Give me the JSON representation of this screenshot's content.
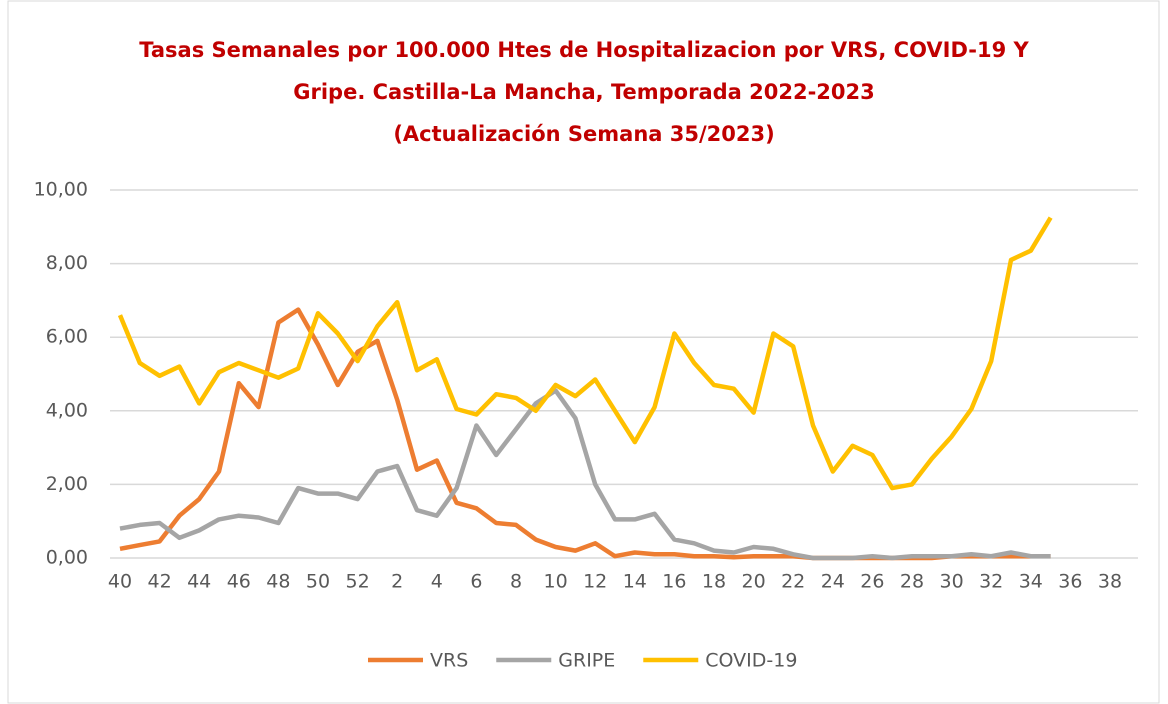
{
  "chart_data": {
    "type": "line",
    "title": [
      "Tasas Semanales por 100.000 Htes de Hospitalizacion por VRS, COVID-19 Y",
      "Gripe. Castilla-La Mancha, Temporada 2022-2023",
      "(Actualización Semana 35/2023)"
    ],
    "title_color": "#c00000",
    "categories": [
      "40",
      null,
      "42",
      null,
      "44",
      null,
      "46",
      null,
      "48",
      null,
      "50",
      null,
      "52",
      null,
      "2",
      null,
      "4",
      null,
      "6",
      null,
      "8",
      null,
      "10",
      null,
      "12",
      null,
      "14",
      null,
      "16",
      null,
      "18",
      null,
      "20",
      null,
      "22",
      null,
      "24",
      null,
      "26",
      null,
      "28",
      null,
      "30",
      null,
      "32",
      null,
      "34",
      null,
      "36",
      null,
      "38"
    ],
    "series": [
      {
        "name": "VRS",
        "color": "#ed7d31",
        "values": [
          0.25,
          0.35,
          0.45,
          1.15,
          1.6,
          2.35,
          4.75,
          4.1,
          6.4,
          6.75,
          5.8,
          4.7,
          5.6,
          5.9,
          4.3,
          2.4,
          2.65,
          1.5,
          1.35,
          0.95,
          0.9,
          0.5,
          0.3,
          0.2,
          0.4,
          0.05,
          0.15,
          0.1,
          0.1,
          0.05,
          0.05,
          0.02,
          0.05,
          0.05,
          0.05,
          0,
          0,
          0,
          0,
          0,
          0,
          0,
          0.05,
          0.05,
          0.05,
          0.05,
          0.05,
          0.05,
          null,
          null,
          null
        ]
      },
      {
        "name": "GRIPE",
        "color": "#a5a5a5",
        "values": [
          0.8,
          0.9,
          0.95,
          0.55,
          0.75,
          1.05,
          1.15,
          1.1,
          0.95,
          1.9,
          1.75,
          1.75,
          1.6,
          2.35,
          2.5,
          1.3,
          1.15,
          1.9,
          3.6,
          2.8,
          3.5,
          4.2,
          4.55,
          3.8,
          2.0,
          1.05,
          1.05,
          1.2,
          0.5,
          0.4,
          0.2,
          0.15,
          0.3,
          0.25,
          0.1,
          0,
          0,
          0,
          0.05,
          0,
          0.05,
          0.05,
          0.05,
          0.1,
          0.05,
          0.15,
          0.05,
          0.05,
          null,
          null,
          null
        ]
      },
      {
        "name": "COVID-19",
        "color": "#ffc000",
        "values": [
          6.6,
          5.3,
          4.95,
          5.2,
          4.2,
          5.05,
          5.3,
          5.1,
          4.9,
          5.15,
          6.65,
          6.1,
          5.35,
          6.3,
          6.95,
          5.1,
          5.4,
          4.05,
          3.9,
          4.45,
          4.35,
          4.0,
          4.7,
          4.4,
          4.85,
          4.0,
          3.15,
          4.1,
          6.1,
          5.3,
          4.7,
          4.6,
          3.95,
          6.1,
          5.75,
          3.6,
          2.35,
          3.05,
          2.8,
          1.9,
          2.0,
          2.7,
          3.3,
          4.05,
          5.35,
          8.1,
          8.35,
          9.25,
          null,
          null,
          null
        ]
      }
    ],
    "ylim": [
      0,
      10
    ],
    "yticks": [
      {
        "value": 0,
        "label": "0,00"
      },
      {
        "value": 2,
        "label": "2,00"
      },
      {
        "value": 4,
        "label": "4,00"
      },
      {
        "value": 6,
        "label": "6,00"
      },
      {
        "value": 8,
        "label": "8,00"
      },
      {
        "value": 10,
        "label": "10,00"
      }
    ],
    "grid": true,
    "legend": "bottom"
  }
}
